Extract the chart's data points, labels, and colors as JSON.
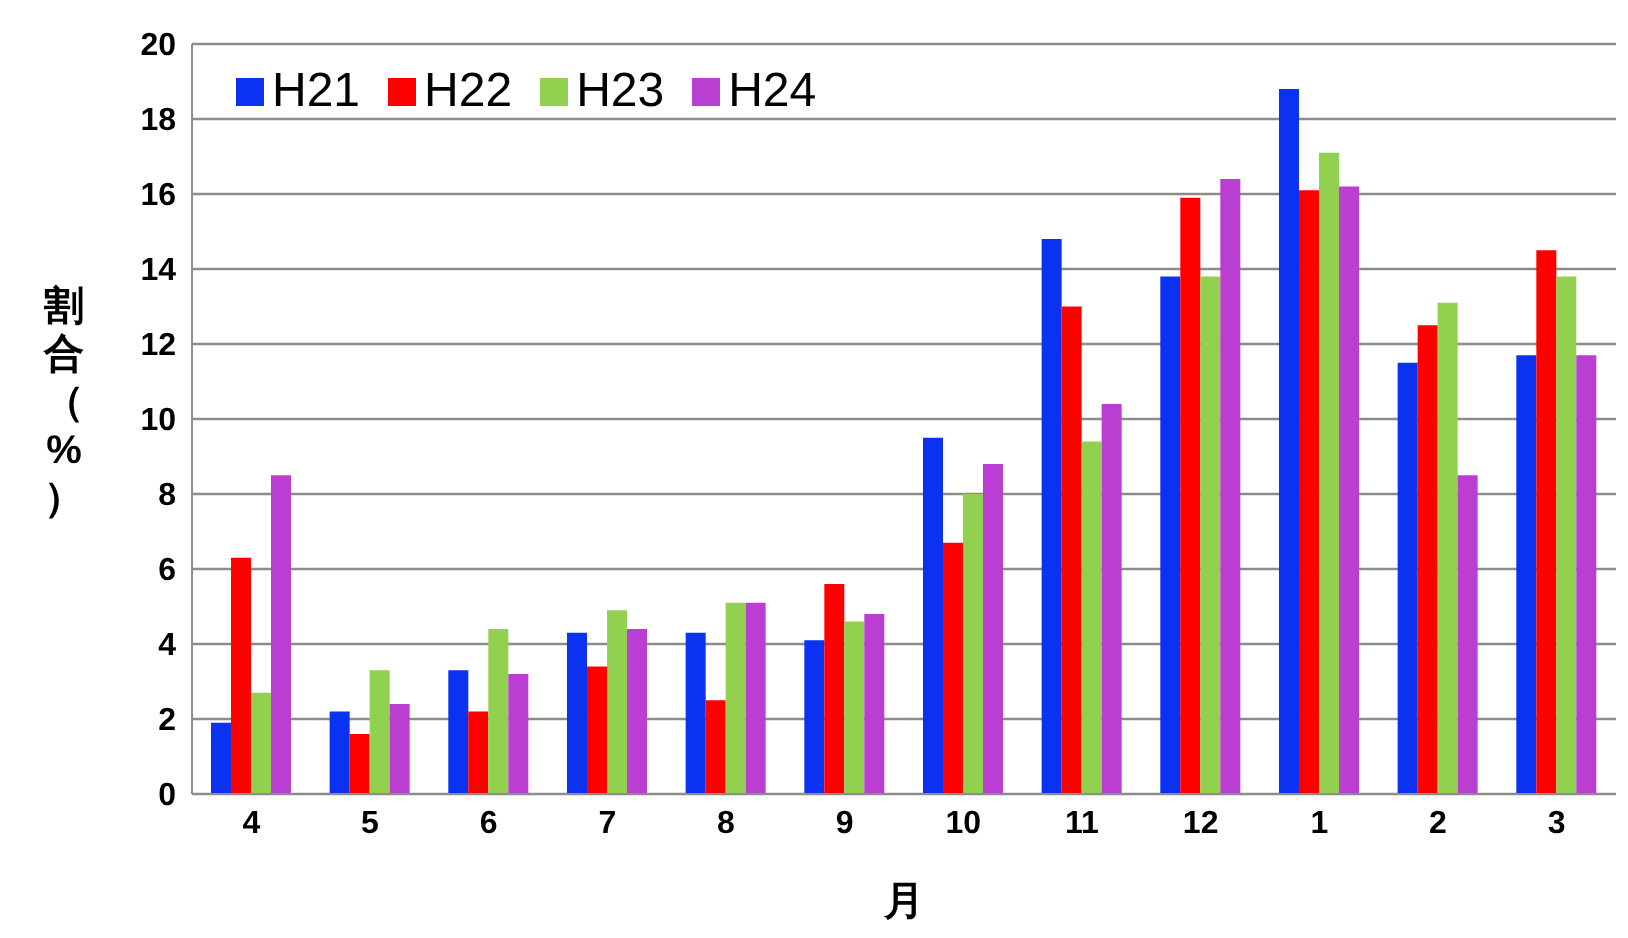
{
  "chart_data": {
    "type": "bar",
    "xlabel": "月",
    "ylabel": "割合（%）",
    "categories": [
      "4",
      "5",
      "6",
      "7",
      "8",
      "9",
      "10",
      "11",
      "12",
      "1",
      "2",
      "3"
    ],
    "series": [
      {
        "name": "H21",
        "color": "#0a32f0",
        "values": [
          1.9,
          2.2,
          3.3,
          4.3,
          4.3,
          4.1,
          9.5,
          14.8,
          13.8,
          18.8,
          11.5,
          11.7
        ]
      },
      {
        "name": "H22",
        "color": "#ff0000",
        "values": [
          6.3,
          1.6,
          2.2,
          3.4,
          2.5,
          5.6,
          6.7,
          13.0,
          15.9,
          16.1,
          12.5,
          14.5
        ]
      },
      {
        "name": "H23",
        "color": "#92d050",
        "values": [
          2.7,
          3.3,
          4.4,
          4.9,
          5.1,
          4.6,
          8.0,
          9.4,
          13.8,
          17.1,
          13.1,
          13.8
        ]
      },
      {
        "name": "H24",
        "color": "#bb3ed3",
        "values": [
          8.5,
          2.4,
          3.2,
          4.4,
          5.1,
          4.8,
          8.8,
          10.4,
          16.4,
          16.2,
          8.5,
          11.7
        ]
      }
    ],
    "ylim": [
      0,
      20
    ],
    "yticks": [
      0,
      2,
      4,
      6,
      8,
      10,
      12,
      14,
      16,
      18,
      20
    ],
    "grid": "y",
    "legend": "top left"
  }
}
